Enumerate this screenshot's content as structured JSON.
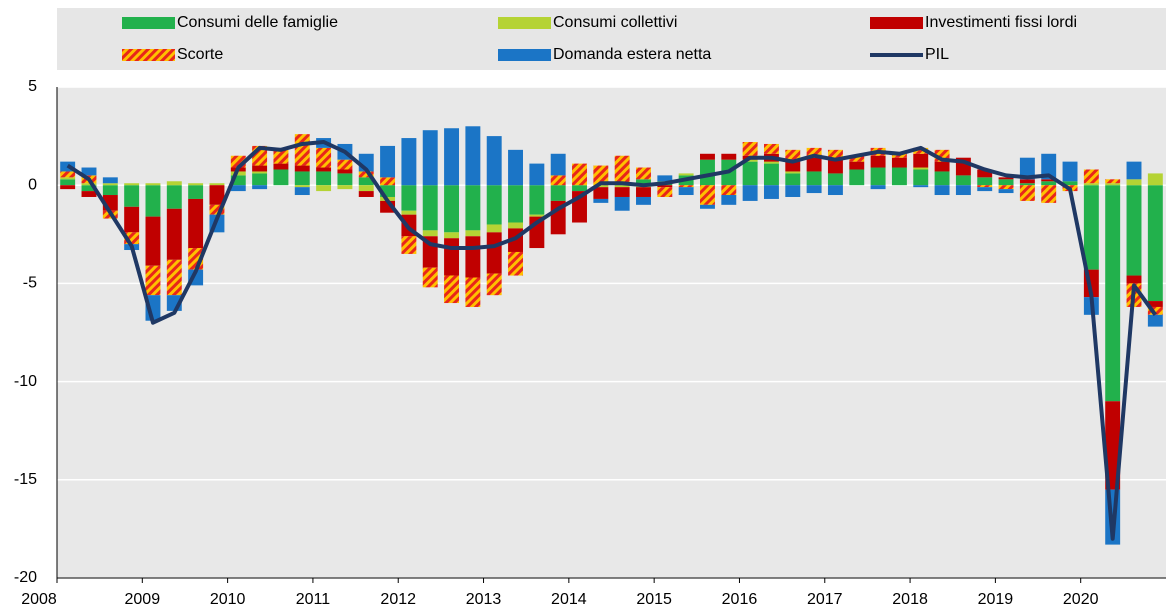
{
  "chart_data": {
    "type": "bar",
    "stacked": true,
    "categories": [
      "2008",
      null,
      null,
      null,
      "2009",
      null,
      null,
      null,
      "2010",
      null,
      null,
      null,
      "2011",
      null,
      null,
      null,
      "2012",
      null,
      null,
      null,
      "2013",
      null,
      null,
      null,
      "2014",
      null,
      null,
      null,
      "2015",
      null,
      null,
      null,
      "2016",
      null,
      null,
      null,
      "2017",
      null,
      null,
      null,
      "2018",
      null,
      null,
      null,
      "2019",
      null,
      null,
      null,
      "2020",
      null,
      null,
      null
    ],
    "series": [
      {
        "name": "Consumi delle famiglie",
        "color": "#22b14c",
        "values": [
          0.3,
          -0.3,
          -0.5,
          -1.1,
          -1.6,
          -1.2,
          -0.7,
          0.0,
          0.5,
          0.6,
          0.8,
          0.7,
          0.7,
          0.6,
          0.4,
          -0.6,
          -1.3,
          -2.3,
          -2.4,
          -2.3,
          -2.0,
          -1.9,
          -1.5,
          -0.8,
          -0.3,
          0.0,
          0.1,
          0.3,
          0.2,
          0.5,
          1.3,
          1.3,
          1.2,
          1.1,
          0.6,
          0.7,
          0.6,
          0.8,
          0.9,
          0.9,
          0.8,
          0.7,
          0.5,
          0.4,
          0.3,
          0.1,
          0.2,
          0.2,
          -4.3,
          -11.0,
          -4.6,
          -5.9
        ]
      },
      {
        "name": "Consumi collettivi",
        "color": "#b5d334",
        "values": [
          0.1,
          0.1,
          0.1,
          0.1,
          0.1,
          0.2,
          0.1,
          0.1,
          0.2,
          0.1,
          0.0,
          -0.1,
          -0.3,
          -0.2,
          -0.3,
          -0.2,
          -0.2,
          -0.3,
          -0.3,
          -0.3,
          -0.4,
          -0.3,
          -0.1,
          0.0,
          0.0,
          -0.1,
          -0.1,
          -0.1,
          0.0,
          0.1,
          0.0,
          0.0,
          0.1,
          0.1,
          0.1,
          0.0,
          0.0,
          0.0,
          0.0,
          0.0,
          0.1,
          0.0,
          0.0,
          0.0,
          0.0,
          0.0,
          0.0,
          0.0,
          0.1,
          0.1,
          0.3,
          0.6
        ]
      },
      {
        "name": "Investimenti fissi lordi",
        "color": "#c00000",
        "values": [
          -0.2,
          -0.3,
          -0.8,
          -1.3,
          -2.5,
          -2.6,
          -2.5,
          -1.0,
          0.2,
          0.3,
          0.3,
          0.3,
          0.2,
          0.2,
          -0.3,
          -0.6,
          -1.1,
          -1.6,
          -1.9,
          -2.1,
          -2.1,
          -1.2,
          -1.6,
          -1.7,
          -1.6,
          -0.6,
          -0.5,
          -0.5,
          -0.1,
          0.0,
          0.3,
          0.3,
          0.2,
          0.4,
          0.6,
          0.7,
          0.7,
          0.4,
          0.6,
          0.5,
          0.7,
          0.5,
          0.9,
          0.4,
          0.1,
          0.2,
          0.1,
          0.0,
          -1.4,
          -4.5,
          -0.4,
          -0.3
        ]
      },
      {
        "name": "Scorte",
        "color": "#e8261a",
        "hatch_color": "#ffc000",
        "values": [
          0.3,
          0.4,
          -0.4,
          -0.6,
          -1.5,
          -1.8,
          -1.1,
          -0.5,
          0.6,
          1.0,
          0.7,
          1.6,
          1.0,
          0.5,
          0.3,
          0.4,
          -0.9,
          -1.0,
          -1.4,
          -1.5,
          -1.1,
          -1.2,
          0.0,
          0.5,
          1.1,
          1.0,
          1.4,
          0.6,
          -0.5,
          -0.1,
          -1.0,
          -0.5,
          0.7,
          0.5,
          0.5,
          0.5,
          0.5,
          0.3,
          0.4,
          0.3,
          0.3,
          0.6,
          0.0,
          -0.1,
          -0.2,
          -0.8,
          -0.9,
          -0.3,
          0.7,
          0.2,
          -1.2,
          -0.4
        ]
      },
      {
        "name": "Domanda estera netta",
        "color": "#1b75c6",
        "values": [
          0.5,
          0.4,
          0.3,
          -0.3,
          -1.3,
          -0.8,
          -0.8,
          -0.9,
          -0.3,
          -0.2,
          0.1,
          -0.4,
          0.5,
          0.8,
          0.9,
          1.6,
          2.4,
          2.8,
          2.9,
          3.0,
          2.5,
          1.8,
          1.1,
          1.1,
          0.0,
          -0.2,
          -0.7,
          -0.4,
          0.3,
          -0.4,
          -0.2,
          -0.5,
          -0.8,
          -0.7,
          -0.6,
          -0.4,
          -0.5,
          0.0,
          -0.2,
          0.0,
          -0.1,
          -0.5,
          -0.5,
          -0.2,
          -0.2,
          1.1,
          1.3,
          1.0,
          -0.9,
          -2.8,
          0.9,
          -0.6
        ]
      },
      {
        "name": "PIL",
        "type": "line",
        "color": "#1f3864",
        "values": [
          1.0,
          0.3,
          -1.4,
          -3.1,
          -7.0,
          -6.5,
          -4.4,
          -1.7,
          0.9,
          1.9,
          1.8,
          2.1,
          2.2,
          1.7,
          0.8,
          -0.8,
          -2.2,
          -3.0,
          -3.2,
          -3.2,
          -3.1,
          -2.7,
          -1.9,
          -1.2,
          -0.6,
          0.1,
          0.1,
          0.0,
          0.1,
          0.3,
          0.5,
          0.7,
          1.4,
          1.4,
          1.2,
          1.5,
          1.3,
          1.5,
          1.7,
          1.6,
          1.9,
          1.3,
          1.2,
          0.8,
          0.5,
          0.4,
          0.5,
          -0.2,
          -5.6,
          -18.0,
          -5.1,
          -6.6
        ]
      }
    ],
    "ylim": [
      -20,
      5
    ],
    "yticks": [
      -20,
      -15,
      -10,
      -5,
      0,
      5
    ],
    "grid": true,
    "legend": "top"
  }
}
